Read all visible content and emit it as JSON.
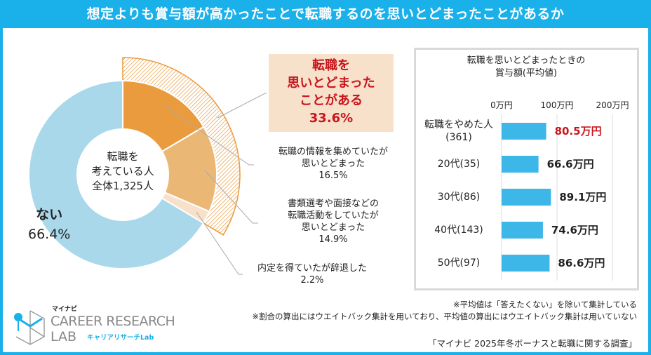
{
  "title": "想定よりも賞与額が高かったことで転職するのを思いとどまったことがあるか",
  "colors": {
    "accent": "#1ab0ea",
    "seg1": "#e99b3e",
    "seg2": "#ebb775",
    "seg3": "#f8e1cb",
    "no": "#a9d8ea",
    "highlight": "#c8161d",
    "bar": "#3db6e8"
  },
  "donut": {
    "center_lines": [
      "転職を",
      "考えている人",
      "全体1,325人"
    ],
    "segments": [
      {
        "label_lines": [
          "転職の情報を集めていたが",
          "思いとどまった"
        ],
        "pct_text": "16.5%",
        "value": 16.5
      },
      {
        "label_lines": [
          "書類選考や面接などの",
          "転職活動をしていたが",
          "思いとどまった"
        ],
        "pct_text": "14.9%",
        "value": 14.9
      },
      {
        "label_lines": [
          "内定を得ていたが辞退した"
        ],
        "pct_text": "2.2%",
        "value": 2.2
      },
      {
        "label_lines": [
          "ない"
        ],
        "pct_text": "66.4%",
        "value": 66.4
      }
    ],
    "highlight": {
      "lines": [
        "転職を",
        "思いとどまった",
        "ことがある"
      ],
      "pct_text": "33.6%",
      "value": 33.6
    }
  },
  "chart_data": {
    "type": "bar",
    "title": "転職を思いとどまったときの 賞与額(平均値)",
    "title_lines": [
      "転職を思いとどまったときの",
      "賞与額(平均値)"
    ],
    "ticks": [
      "0万円",
      "100万円",
      "200万円"
    ],
    "xlim": [
      0,
      200
    ],
    "categories": [
      [
        "転職をやめた人",
        "(361)"
      ],
      [
        "20代(35)"
      ],
      [
        "30代(86)"
      ],
      [
        "40代(143)"
      ],
      [
        "50代(97)"
      ]
    ],
    "values": [
      80.5,
      66.6,
      89.1,
      74.6,
      86.6
    ],
    "value_labels": [
      "80.5万円",
      "66.6万円",
      "89.1万円",
      "74.6万円",
      "86.6万円"
    ]
  },
  "notes": [
    "※平均値は「答えたくない」を除いて集計している",
    "※割合の算出にはウエイトバック集計を用いており、平均値の算出にはウエイトバック集計は用いていない"
  ],
  "source": "「マイナビ 2025年冬ボーナスと転職に関する調査」",
  "logo": {
    "brand": "マイナビ",
    "line1": "CAREER RESEARCH",
    "line2": "LAB",
    "sub": "キャリアリサーチLab"
  }
}
